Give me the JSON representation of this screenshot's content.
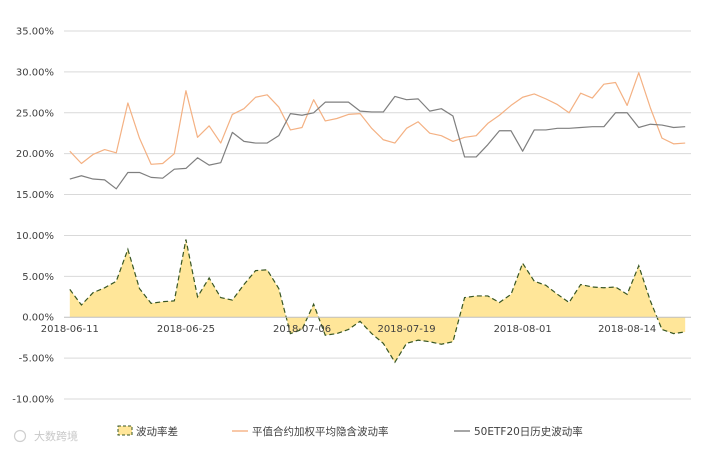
{
  "chart_data": {
    "type": "line",
    "title": "",
    "xlabel": "",
    "ylabel": "",
    "ylim": [
      -0.1,
      0.35
    ],
    "y_ticks": [
      -0.1,
      -0.05,
      0.0,
      0.05,
      0.1,
      0.15,
      0.2,
      0.25,
      0.3,
      0.35
    ],
    "y_tick_labels": [
      "-10.00%",
      "-5.00%",
      "0.00%",
      "5.00%",
      "10.00%",
      "15.00%",
      "20.00%",
      "25.00%",
      "30.00%",
      "35.00%"
    ],
    "x_tick_labels": [
      {
        "index": 0,
        "label": "2018-06-11"
      },
      {
        "index": 10,
        "label": "2018-06-25"
      },
      {
        "index": 20,
        "label": "2018-07-06"
      },
      {
        "index": 29,
        "label": "2018-07-19"
      },
      {
        "index": 39,
        "label": "2018-08-01"
      },
      {
        "index": 48,
        "label": "2018-08-14"
      }
    ],
    "grid": true,
    "legend_position": "bottom",
    "series": [
      {
        "name": "波动率差",
        "render": "area",
        "fill_color": "#FFE699",
        "line_color": "#375623",
        "values": [
          0.034,
          0.015,
          0.03,
          0.036,
          0.044,
          0.083,
          0.035,
          0.017,
          0.019,
          0.02,
          0.095,
          0.025,
          0.048,
          0.024,
          0.021,
          0.04,
          0.057,
          0.058,
          0.035,
          -0.02,
          -0.015,
          0.016,
          -0.022,
          -0.02,
          -0.015,
          -0.005,
          -0.02,
          -0.032,
          -0.055,
          -0.032,
          -0.028,
          -0.03,
          -0.033,
          -0.03,
          0.024,
          0.026,
          0.026,
          0.018,
          0.028,
          0.066,
          0.044,
          0.039,
          0.028,
          0.018,
          0.04,
          0.037,
          0.036,
          0.037,
          0.028,
          0.063,
          0.02,
          -0.015,
          -0.02,
          -0.018
        ]
      },
      {
        "name": "平值合约加权平均隐含波动率",
        "render": "line",
        "line_color": "#F4B183",
        "values": [
          0.203,
          0.188,
          0.199,
          0.205,
          0.201,
          0.262,
          0.219,
          0.187,
          0.188,
          0.2,
          0.277,
          0.22,
          0.234,
          0.213,
          0.248,
          0.255,
          0.269,
          0.272,
          0.257,
          0.229,
          0.232,
          0.266,
          0.24,
          0.243,
          0.248,
          0.249,
          0.231,
          0.217,
          0.213,
          0.231,
          0.239,
          0.225,
          0.222,
          0.215,
          0.22,
          0.222,
          0.237,
          0.247,
          0.259,
          0.269,
          0.273,
          0.267,
          0.26,
          0.25,
          0.274,
          0.268,
          0.285,
          0.287,
          0.259,
          0.299,
          0.256,
          0.219,
          0.212,
          0.213
        ]
      },
      {
        "name": "50ETF20日历史波动率",
        "render": "line",
        "line_color": "#7F7F7F",
        "values": [
          0.169,
          0.173,
          0.169,
          0.168,
          0.157,
          0.177,
          0.177,
          0.171,
          0.17,
          0.181,
          0.182,
          0.195,
          0.186,
          0.189,
          0.226,
          0.215,
          0.213,
          0.213,
          0.222,
          0.249,
          0.247,
          0.25,
          0.263,
          0.263,
          0.263,
          0.252,
          0.251,
          0.251,
          0.27,
          0.266,
          0.267,
          0.252,
          0.255,
          0.246,
          0.196,
          0.196,
          0.211,
          0.228,
          0.228,
          0.203,
          0.229,
          0.229,
          0.231,
          0.231,
          0.232,
          0.233,
          0.233,
          0.25,
          0.25,
          0.232,
          0.236,
          0.235,
          0.232,
          0.233
        ]
      }
    ]
  },
  "watermark": "大数跨境"
}
